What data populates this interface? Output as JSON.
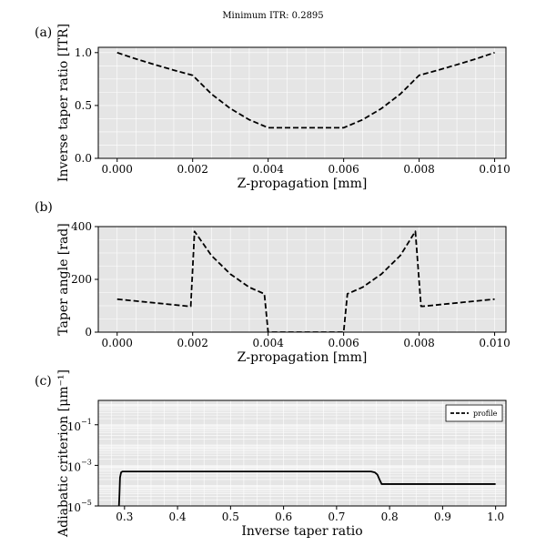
{
  "figure_title": "Minimum ITR: 0.2895",
  "chart_data": [
    {
      "type": "line",
      "panel_label": "(a)",
      "xlabel": "Z-propagation [mm]",
      "ylabel": "Inverse taper ratio [ITR]",
      "xlim": [
        -0.0005,
        0.0103
      ],
      "ylim": [
        0.0,
        1.05
      ],
      "xticks": [
        0.0,
        0.002,
        0.004,
        0.006,
        0.008,
        0.01
      ],
      "xtick_labels": [
        "0.000",
        "0.002",
        "0.004",
        "0.006",
        "0.008",
        "0.010"
      ],
      "yticks": [
        0.0,
        0.5,
        1.0
      ],
      "ytick_labels": [
        "0.0",
        "0.5",
        "1.0"
      ],
      "grid": true,
      "series": [
        {
          "style": "dashed",
          "x": [
            0.0,
            0.0005,
            0.001,
            0.0015,
            0.002,
            0.0025,
            0.003,
            0.0035,
            0.004,
            0.0045,
            0.005,
            0.0055,
            0.006,
            0.0065,
            0.007,
            0.0075,
            0.008,
            0.0085,
            0.009,
            0.0095,
            0.01
          ],
          "y": [
            1.0,
            0.94,
            0.886,
            0.834,
            0.785,
            0.608,
            0.471,
            0.365,
            0.2895,
            0.2895,
            0.2895,
            0.2895,
            0.2895,
            0.365,
            0.471,
            0.608,
            0.785,
            0.834,
            0.886,
            0.94,
            1.0
          ]
        }
      ]
    },
    {
      "type": "line",
      "panel_label": "(b)",
      "xlabel": "Z-propagation [mm]",
      "ylabel": "Taper angle [rad]",
      "xlim": [
        -0.0005,
        0.0103
      ],
      "ylim": [
        0,
        400
      ],
      "xticks": [
        0.0,
        0.002,
        0.004,
        0.006,
        0.008,
        0.01
      ],
      "xtick_labels": [
        "0.000",
        "0.002",
        "0.004",
        "0.006",
        "0.008",
        "0.010"
      ],
      "yticks": [
        0,
        200,
        400
      ],
      "ytick_labels": [
        "0",
        "200",
        "400"
      ],
      "grid": true,
      "series": [
        {
          "style": "dashed",
          "x": [
            0.0,
            0.0019,
            0.00195,
            0.00205,
            0.0025,
            0.003,
            0.0035,
            0.0039,
            0.004,
            0.0041,
            0.0059,
            0.006,
            0.0061,
            0.0065,
            0.007,
            0.0075,
            0.0079,
            0.00805,
            0.0081,
            0.01
          ],
          "y": [
            125,
            98,
            98,
            382,
            290,
            220,
            170,
            145,
            0,
            0,
            0,
            0,
            145,
            170,
            220,
            290,
            382,
            98,
            98,
            125
          ]
        }
      ]
    },
    {
      "type": "line",
      "panel_label": "(c)",
      "xlabel": "Inverse taper ratio",
      "ylabel": "Adiabatic criterion [μm⁻¹]",
      "xlim": [
        0.2505,
        1.0195
      ],
      "ylim_log10": [
        -5,
        0.2
      ],
      "yscale": "log",
      "xticks": [
        0.3,
        0.4,
        0.5,
        0.6,
        0.7,
        0.8,
        0.9,
        1.0
      ],
      "xtick_labels": [
        "0.3",
        "0.4",
        "0.5",
        "0.6",
        "0.7",
        "0.8",
        "0.9",
        "1.0"
      ],
      "yticks_log10": [
        -5,
        -3,
        -1
      ],
      "ytick_labels": [
        "10",
        "10",
        "10"
      ],
      "ytick_exponents": [
        "−5",
        "−3",
        "−1"
      ],
      "grid": true,
      "legend": {
        "position": "top-right",
        "entries": [
          "profile"
        ]
      },
      "series": [
        {
          "name": "profile",
          "style": "solid",
          "x": [
            0.2895,
            0.2905,
            0.2915,
            0.2935,
            0.296,
            0.3,
            0.4,
            0.5,
            0.6,
            0.7,
            0.765,
            0.772,
            0.777,
            0.781,
            0.785,
            0.8,
            0.9,
            1.0
          ],
          "y": [
            1e-05,
            4e-05,
            0.00025,
            0.00045,
            0.0005,
            0.0005,
            0.0005,
            0.0005,
            0.0005,
            0.0005,
            0.0005,
            0.00045,
            0.00035,
            0.0002,
            0.00012,
            0.00012,
            0.00012,
            0.00012
          ]
        }
      ]
    }
  ]
}
